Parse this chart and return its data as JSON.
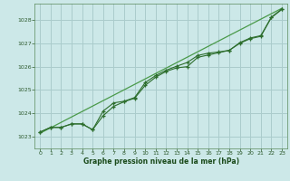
{
  "title": "Graphe pression niveau de la mer (hPa)",
  "bg_color": "#cce8e8",
  "grid_color": "#aacccc",
  "line_color_main": "#2d6e2d",
  "line_color_smooth": "#4a9a4a",
  "xlim": [
    -0.5,
    23.5
  ],
  "ylim": [
    1022.5,
    1028.7
  ],
  "yticks": [
    1023,
    1024,
    1025,
    1026,
    1027,
    1028
  ],
  "xticks": [
    0,
    1,
    2,
    3,
    4,
    5,
    6,
    7,
    8,
    9,
    10,
    11,
    12,
    13,
    14,
    15,
    16,
    17,
    18,
    19,
    20,
    21,
    22,
    23
  ],
  "series1_x": [
    0,
    1,
    2,
    3,
    4,
    5,
    6,
    7,
    8,
    9,
    10,
    11,
    12,
    13,
    14,
    15,
    16,
    17,
    18,
    19,
    20,
    21,
    22,
    23
  ],
  "series1_y": [
    1023.2,
    1023.4,
    1023.4,
    1023.55,
    1023.55,
    1023.3,
    1023.9,
    1024.3,
    1024.5,
    1024.65,
    1025.2,
    1025.55,
    1025.8,
    1025.95,
    1026.0,
    1026.4,
    1026.5,
    1026.6,
    1026.7,
    1027.0,
    1027.2,
    1027.3,
    1028.1,
    1028.45
  ],
  "series2_x": [
    0,
    1,
    2,
    3,
    4,
    5,
    6,
    7,
    8,
    9,
    10,
    11,
    12,
    13,
    14,
    15,
    16,
    17,
    18,
    19,
    20,
    21,
    22,
    23
  ],
  "series2_y": [
    1023.2,
    1023.4,
    1023.4,
    1023.55,
    1023.55,
    1023.3,
    1024.1,
    1024.45,
    1024.52,
    1024.68,
    1025.32,
    1025.62,
    1025.85,
    1026.02,
    1026.18,
    1026.48,
    1026.58,
    1026.63,
    1026.7,
    1027.03,
    1027.23,
    1027.33,
    1028.12,
    1028.47
  ],
  "series3_x": [
    0,
    23
  ],
  "series3_y": [
    1023.15,
    1028.5
  ]
}
